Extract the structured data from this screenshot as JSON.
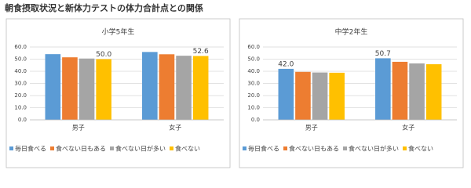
{
  "title": "朝食摂取状況と新体力テストの体力合計点との関係",
  "chart_data": [
    {
      "type": "bar",
      "title": "小学5年生",
      "categories": [
        "男子",
        "女子"
      ],
      "series": [
        {
          "name": "毎日食べる",
          "color": "#5b9bd5",
          "values": [
            54.1,
            55.9
          ]
        },
        {
          "name": "食べない日もある",
          "color": "#ed7d31",
          "values": [
            51.5,
            54.0
          ]
        },
        {
          "name": "食べない日が多い",
          "color": "#a5a5a5",
          "values": [
            50.5,
            52.8
          ]
        },
        {
          "name": "食べない",
          "color": "#ffc000",
          "values": [
            50.0,
            52.6
          ],
          "value_labels": [
            "50.0",
            "52.6"
          ]
        }
      ],
      "ylim": [
        0,
        60
      ],
      "yticks": [
        {
          "value": 0,
          "label": "0.0"
        },
        {
          "value": 10,
          "label": "10.0"
        },
        {
          "value": 20,
          "label": "20.0"
        },
        {
          "value": 30,
          "label": "30.0"
        },
        {
          "value": 40,
          "label": "40.0"
        },
        {
          "value": 50,
          "label": "50.0"
        },
        {
          "value": 60,
          "label": "60.0"
        }
      ],
      "grid": true,
      "legend": "bottom"
    },
    {
      "type": "bar",
      "title": "中学2年生",
      "categories": [
        "男子",
        "女子"
      ],
      "series": [
        {
          "name": "毎日食べる",
          "color": "#5b9bd5",
          "values": [
            42.0,
            50.7
          ],
          "value_labels": [
            "42.0",
            "50.7"
          ]
        },
        {
          "name": "食べない日もある",
          "color": "#ed7d31",
          "values": [
            39.5,
            47.8
          ]
        },
        {
          "name": "食べない日が多い",
          "color": "#a5a5a5",
          "values": [
            39.0,
            46.5
          ]
        },
        {
          "name": "食べない",
          "color": "#ffc000",
          "values": [
            38.8,
            45.8
          ]
        }
      ],
      "ylim": [
        0,
        60
      ],
      "yticks": [
        {
          "value": 0,
          "label": "0.0"
        },
        {
          "value": 10,
          "label": "10.0"
        },
        {
          "value": 20,
          "label": "20.0"
        },
        {
          "value": 30,
          "label": "30.0"
        },
        {
          "value": 40,
          "label": "40.0"
        },
        {
          "value": 50,
          "label": "50.0"
        },
        {
          "value": 60,
          "label": "60.0"
        }
      ],
      "grid": true,
      "legend": "bottom"
    }
  ]
}
